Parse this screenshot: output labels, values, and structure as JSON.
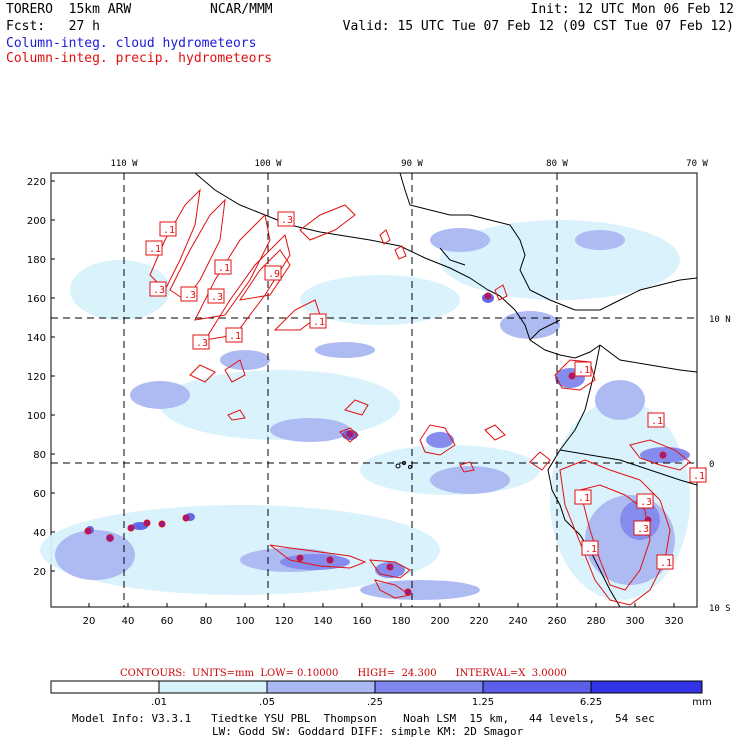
{
  "header": {
    "model": "TORERO  15km ARW",
    "org": "NCAR/MMM",
    "init": "Init: 12 UTC Mon 06 Feb 12",
    "fcst": "Fcst:   27 h",
    "valid": "Valid: 15 UTC Tue 07 Feb 12 (09 CST Tue 07 Feb 12)",
    "field_cloud": "Column-integ. cloud hydrometeors",
    "field_precip": "Column-integ. precip. hydrometeors"
  },
  "colors": {
    "cloud_label": "#1a1adb",
    "precip": "#e01010",
    "shade_1": "#d8f2fb",
    "shade_2": "#aab8f3",
    "shade_3": "#7f86ee",
    "shade_4": "#5a5ee8",
    "shade_5": "#3232e6"
  },
  "map": {
    "lon_labels": [
      "110 W",
      "100 W",
      "90 W",
      "80 W",
      "70 W"
    ],
    "lat_labels": [
      "10 N",
      "0",
      "10 S"
    ],
    "y_ticks": [
      "220",
      "200",
      "180",
      "160",
      "140",
      "120",
      "100",
      "80",
      "60",
      "40",
      "20"
    ],
    "x_ticks": [
      "20",
      "40",
      "60",
      "80",
      "100",
      "120",
      "140",
      "160",
      "180",
      "200",
      "220",
      "240",
      "260",
      "280",
      "300",
      "320"
    ],
    "box_labels": [
      ".1",
      ".1",
      ".1",
      ".3",
      ".3",
      ".3",
      ".1",
      ".3",
      ".3",
      ".1",
      ".9",
      ".1",
      ".1",
      ".3",
      ".3",
      ".1",
      ".1",
      ".1",
      ".1"
    ]
  },
  "footer": {
    "contours": "CONTOURS:  UNITS=mm  LOW= 0.10000      HIGH=  24.300      INTERVAL=X  3.0000",
    "scale_values": [
      ".01",
      ".05",
      ".25",
      "1.25",
      "6.25"
    ],
    "scale_unit": "mm",
    "model_info_1": "Model Info: V3.3.1   Tiedtke YSU PBL  Thompson    Noah LSM  15 km,   44 levels,   54 sec",
    "model_info_2": "LW: Godd SW: Goddard DIFF: simple KM: 2D Smagor"
  }
}
